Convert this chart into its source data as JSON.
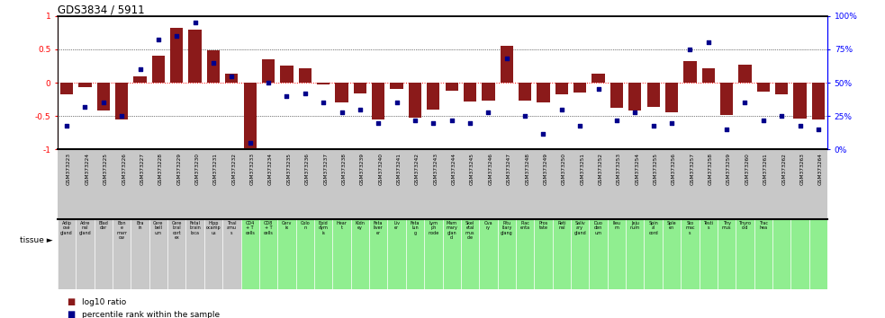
{
  "title": "GDS3834 / 5911",
  "gsm_labels": [
    "GSM373223",
    "GSM373224",
    "GSM373225",
    "GSM373226",
    "GSM373227",
    "GSM373228",
    "GSM373229",
    "GSM373230",
    "GSM373231",
    "GSM373232",
    "GSM373233",
    "GSM373234",
    "GSM373235",
    "GSM373236",
    "GSM373237",
    "GSM373238",
    "GSM373239",
    "GSM373240",
    "GSM373241",
    "GSM373242",
    "GSM373243",
    "GSM373244",
    "GSM373245",
    "GSM373246",
    "GSM373247",
    "GSM373248",
    "GSM373249",
    "GSM373250",
    "GSM373251",
    "GSM373252",
    "GSM373253",
    "GSM373254",
    "GSM373255",
    "GSM373256",
    "GSM373257",
    "GSM373258",
    "GSM373259",
    "GSM373260",
    "GSM373261",
    "GSM373262",
    "GSM373263",
    "GSM373264"
  ],
  "tissue_labels": [
    "Adip\nose\ngland",
    "Adre\nnal\ngland",
    "Blad\nder",
    "Bon\ne\nmarr\now",
    "Bra\nin",
    "Cere\nbell\num",
    "Cere\nbral\ncort\nex",
    "Fetal\nbrain\nloca",
    "Hipp\nocamp\nus",
    "Thal\namu\ns",
    "CD4\n+ T\ncells",
    "CD8\n+ T\ncells",
    "Cerv\nix",
    "Colo\nn",
    "Epid\ndym\nis",
    "Hear\nt",
    "Kidn\ney",
    "Feta\nliver\ner",
    "Liv\ner",
    "Feta\nlun\ng",
    "Lym\nph\nnode",
    "Mam\nmary\nglan\nd",
    "Skel\netal\nmus\ncle",
    "Ova\nry",
    "Pitu\nitary\nglang",
    "Plac\nenta",
    "Pros\ntate",
    "Reti\nnal",
    "Saliv\nary\ngland",
    "Duo\nden\num",
    "Ileu\nm",
    "Jeju\nnum",
    "Spin\nal\ncord",
    "Sple\nen",
    "Sto\nmac\ns",
    "Testi\ns",
    "Thy\nmus",
    "Thyro\noid",
    "Trac\nhea",
    "",
    "",
    ""
  ],
  "tissue_colors": [
    "#c8c8c8",
    "#c8c8c8",
    "#c8c8c8",
    "#c8c8c8",
    "#c8c8c8",
    "#c8c8c8",
    "#c8c8c8",
    "#c8c8c8",
    "#c8c8c8",
    "#c8c8c8",
    "#90ee90",
    "#90ee90",
    "#90ee90",
    "#90ee90",
    "#90ee90",
    "#90ee90",
    "#90ee90",
    "#90ee90",
    "#90ee90",
    "#90ee90",
    "#90ee90",
    "#90ee90",
    "#90ee90",
    "#90ee90",
    "#90ee90",
    "#90ee90",
    "#90ee90",
    "#90ee90",
    "#90ee90",
    "#90ee90",
    "#90ee90",
    "#90ee90",
    "#90ee90",
    "#90ee90",
    "#90ee90",
    "#90ee90",
    "#90ee90",
    "#90ee90",
    "#90ee90",
    "#90ee90",
    "#90ee90",
    "#90ee90"
  ],
  "log10_ratio": [
    -0.18,
    -0.07,
    -0.42,
    -0.55,
    0.1,
    0.4,
    0.82,
    0.8,
    0.48,
    0.14,
    -0.98,
    0.35,
    0.26,
    0.22,
    -0.02,
    -0.3,
    -0.16,
    -0.55,
    -0.1,
    -0.52,
    -0.4,
    -0.12,
    -0.28,
    -0.27,
    0.55,
    -0.27,
    -0.3,
    -0.17,
    -0.15,
    0.13,
    -0.37,
    -0.42,
    -0.36,
    -0.44,
    0.32,
    0.22,
    -0.48,
    0.27,
    -0.14,
    -0.18,
    -0.54,
    -0.55
  ],
  "percentile": [
    18,
    32,
    35,
    25,
    60,
    82,
    85,
    95,
    65,
    55,
    5,
    50,
    40,
    42,
    35,
    28,
    30,
    20,
    35,
    22,
    20,
    22,
    20,
    28,
    68,
    25,
    12,
    30,
    18,
    45,
    22,
    28,
    18,
    20,
    75,
    80,
    15,
    35,
    22,
    25,
    18,
    15
  ],
  "bar_color": "#8B1A1A",
  "dot_color": "#00008B",
  "gsm_bg_color": "#c8c8c8",
  "plot_bg_color": "#ffffff"
}
